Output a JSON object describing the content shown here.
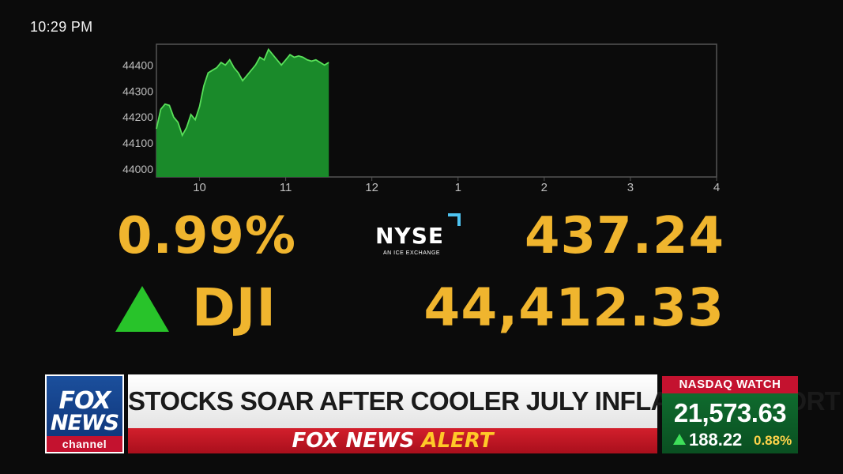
{
  "status_bar": {
    "time": "10:29 PM"
  },
  "chart_data": {
    "type": "area",
    "x": [
      9.5,
      9.55,
      9.6,
      9.65,
      9.7,
      9.75,
      9.8,
      9.85,
      9.9,
      9.95,
      10.0,
      10.05,
      10.1,
      10.15,
      10.2,
      10.25,
      10.3,
      10.35,
      10.4,
      10.45,
      10.5,
      10.55,
      10.6,
      10.65,
      10.7,
      10.75,
      10.8,
      10.85,
      10.9,
      10.95,
      11.0,
      11.05,
      11.1,
      11.15,
      11.2,
      11.25,
      11.3,
      11.35,
      11.4,
      11.45,
      11.5
    ],
    "y": [
      44155,
      44230,
      44250,
      44245,
      44200,
      44180,
      44130,
      44160,
      44210,
      44190,
      44240,
      44320,
      44370,
      44380,
      44390,
      44410,
      44400,
      44420,
      44390,
      44370,
      44340,
      44360,
      44380,
      44400,
      44430,
      44420,
      44460,
      44440,
      44420,
      44400,
      44420,
      44440,
      44430,
      44435,
      44430,
      44420,
      44415,
      44420,
      44410,
      44400,
      44410
    ],
    "xticks": [
      "10",
      "11",
      "12",
      "1",
      "2",
      "3",
      "4"
    ],
    "yticks": [
      "44000",
      "44100",
      "44200",
      "44300",
      "44400"
    ],
    "xlim": [
      9.5,
      16
    ],
    "ylim": [
      43970,
      44480
    ],
    "grid": false,
    "fill_color": "#1a8a2a",
    "line_color": "#59e05a"
  },
  "ticker": {
    "percent_change": "0.99%",
    "direction": "up",
    "symbol": "DJI",
    "point_change": "437.24",
    "index_level": "44,412.33",
    "exchange_logo": {
      "word": "NYSE",
      "sub": "AN ICE EXCHANGE"
    }
  },
  "network": {
    "logo_top": "FOX",
    "logo_bottom": "NEWS",
    "logo_channel": "channel"
  },
  "lower_third": {
    "headline": "STOCKS SOAR AFTER COOLER JULY INFLATION REPORT",
    "alert_part1": "FOX NEWS ",
    "alert_part2": "ALERT"
  },
  "nasdaq_watch": {
    "label": "NASDAQ WATCH",
    "value": "21,573.63",
    "change": "188.22",
    "percent": "0.88%"
  },
  "colors": {
    "ticker_gold": "#f0b52e",
    "up_green": "#28c32a",
    "alert_red": "#c4122f",
    "fox_blue": "#1b4f9c"
  }
}
